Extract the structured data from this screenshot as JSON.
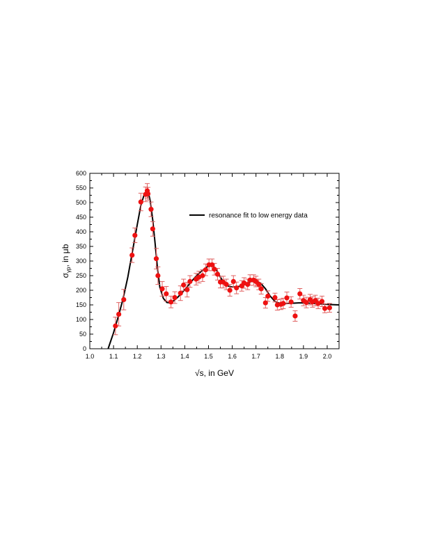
{
  "chart_data": {
    "type": "scatter",
    "xlabel_root": "√",
    "xlabel_rest": "s, in GeV",
    "ylabel_sigma": "σ",
    "ylabel_sub": "γp",
    "ylabel_rest": ", in μb",
    "xlim": [
      1.0,
      2.05
    ],
    "ylim": [
      0,
      600
    ],
    "xticks": [
      1.0,
      1.1,
      1.2,
      1.3,
      1.4,
      1.5,
      1.6,
      1.7,
      1.8,
      1.9,
      2.0
    ],
    "xtick_labels": [
      "1.0",
      "1.1",
      "1.2",
      "1.3",
      "1.4",
      "1.5",
      "1.6",
      "1.7",
      "1.8",
      "1.9",
      "2.0"
    ],
    "yticks": [
      0,
      50,
      100,
      150,
      200,
      250,
      300,
      350,
      400,
      450,
      500,
      550,
      600
    ],
    "ytick_labels": [
      "0",
      "50",
      "100",
      "150",
      "200",
      "250",
      "300",
      "350",
      "400",
      "450",
      "500",
      "550",
      "600"
    ],
    "grid": false,
    "legend_position": "top-right",
    "colors": {
      "points": "#ee1111",
      "errorbars": "#e06060",
      "fit": "#000000"
    },
    "series": [
      {
        "marker": "circle",
        "x": [
          1.108,
          1.122,
          1.143,
          1.178,
          1.19,
          1.215,
          1.235,
          1.242,
          1.245,
          1.258,
          1.265,
          1.28,
          1.287,
          1.305,
          1.322,
          1.342,
          1.358,
          1.382,
          1.395,
          1.41,
          1.422,
          1.448,
          1.46,
          1.475,
          1.488,
          1.502,
          1.515,
          1.525,
          1.538,
          1.55,
          1.562,
          1.575,
          1.59,
          1.605,
          1.618,
          1.64,
          1.65,
          1.665,
          1.675,
          1.69,
          1.7,
          1.712,
          1.722,
          1.74,
          1.75,
          1.78,
          1.79,
          1.805,
          1.815,
          1.83,
          1.848,
          1.865,
          1.885,
          1.9,
          1.912,
          1.928,
          1.938,
          1.95,
          1.962,
          1.978,
          1.99,
          2.01
        ],
        "y": [
          78,
          118,
          168,
          320,
          388,
          502,
          528,
          540,
          530,
          477,
          410,
          308,
          250,
          205,
          188,
          160,
          175,
          190,
          218,
          202,
          230,
          238,
          245,
          250,
          270,
          287,
          287,
          272,
          255,
          228,
          228,
          220,
          200,
          230,
          208,
          215,
          225,
          220,
          235,
          235,
          230,
          220,
          205,
          157,
          180,
          175,
          150,
          152,
          155,
          174,
          160,
          112,
          188,
          165,
          158,
          168,
          160,
          165,
          155,
          162,
          138,
          140
        ],
        "err": [
          30,
          40,
          35,
          25,
          25,
          30,
          25,
          25,
          22,
          25,
          25,
          35,
          30,
          25,
          25,
          20,
          20,
          25,
          20,
          25,
          20,
          20,
          20,
          20,
          20,
          20,
          20,
          20,
          20,
          20,
          20,
          18,
          20,
          20,
          20,
          18,
          18,
          18,
          18,
          18,
          18,
          18,
          18,
          18,
          18,
          15,
          18,
          18,
          18,
          20,
          18,
          18,
          18,
          18,
          18,
          18,
          18,
          18,
          18,
          18,
          15,
          15
        ]
      },
      {
        "name": "resonance fit to low energy data",
        "line": true,
        "x": [
          1.077,
          1.1,
          1.12,
          1.14,
          1.16,
          1.18,
          1.2,
          1.215,
          1.23,
          1.245,
          1.255,
          1.265,
          1.275,
          1.285,
          1.295,
          1.31,
          1.325,
          1.34,
          1.355,
          1.37,
          1.39,
          1.41,
          1.43,
          1.45,
          1.47,
          1.49,
          1.505,
          1.52,
          1.535,
          1.55,
          1.565,
          1.58,
          1.6,
          1.62,
          1.64,
          1.66,
          1.68,
          1.7,
          1.72,
          1.74,
          1.76,
          1.78,
          1.8,
          1.82,
          1.84,
          1.86,
          1.88,
          1.9,
          1.92,
          1.94,
          1.96,
          1.98,
          2.0,
          2.02,
          2.05
        ],
        "y": [
          0,
          55,
          110,
          170,
          245,
          335,
          425,
          490,
          530,
          540,
          505,
          440,
          360,
          275,
          210,
          172,
          158,
          157,
          165,
          176,
          193,
          212,
          232,
          250,
          265,
          278,
          285,
          283,
          268,
          245,
          225,
          215,
          211,
          212,
          215,
          222,
          230,
          232,
          224,
          205,
          180,
          162,
          155,
          154,
          155,
          156,
          157,
          157,
          156,
          155,
          154,
          153,
          152,
          151,
          150
        ]
      }
    ]
  }
}
